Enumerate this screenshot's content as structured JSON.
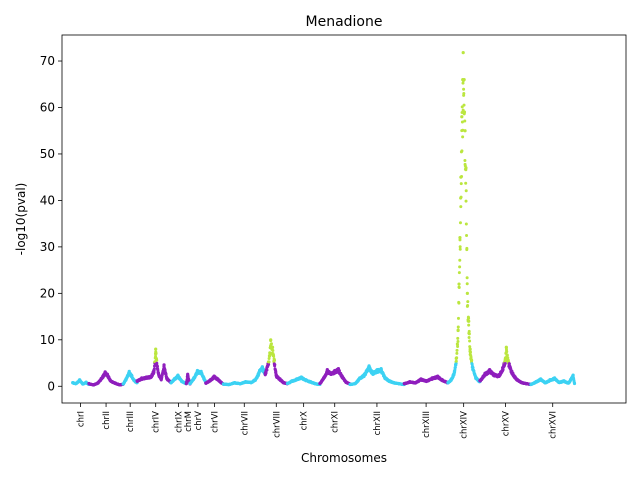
{
  "chart_data": {
    "type": "scatter",
    "title": "Menadione",
    "xlabel": "Chromosomes",
    "ylabel": "-log10(pval)",
    "ylim": [
      -3.6,
      75.6
    ],
    "yticks": [
      0,
      10,
      20,
      30,
      40,
      50,
      60,
      70
    ],
    "xlim": [
      0,
      12.16
    ],
    "grid": false,
    "colors": {
      "odd": "#3dd2f3",
      "even": "#8f1fbd",
      "significant": "#bbe63f"
    },
    "significance_threshold": 5,
    "chromosomes": [
      {
        "name": "chrI",
        "start": 0.23,
        "end": 0.58,
        "tick": 0.4
      },
      {
        "name": "chrII",
        "start": 0.58,
        "end": 1.32,
        "tick": 0.95
      },
      {
        "name": "chrIII",
        "start": 1.32,
        "end": 1.62,
        "tick": 1.47
      },
      {
        "name": "chrIV",
        "start": 1.62,
        "end": 2.35,
        "tick": 2.02
      },
      {
        "name": "chrIX",
        "start": 2.35,
        "end": 2.68,
        "tick": 2.51
      },
      {
        "name": "chrM",
        "start": 2.68,
        "end": 2.76,
        "tick": 2.72
      },
      {
        "name": "chrV",
        "start": 2.76,
        "end": 3.1,
        "tick": 2.93
      },
      {
        "name": "chrVI",
        "start": 3.1,
        "end": 3.48,
        "tick": 3.29
      },
      {
        "name": "chrVII",
        "start": 3.48,
        "end": 4.38,
        "tick": 3.93
      },
      {
        "name": "chrVIII",
        "start": 4.38,
        "end": 4.86,
        "tick": 4.62
      },
      {
        "name": "chrX",
        "start": 4.86,
        "end": 5.56,
        "tick": 5.21
      },
      {
        "name": "chrXI",
        "start": 5.56,
        "end": 6.21,
        "tick": 5.88
      },
      {
        "name": "chrXII",
        "start": 6.21,
        "end": 7.38,
        "tick": 6.79
      },
      {
        "name": "chrXIII",
        "start": 7.38,
        "end": 8.32,
        "tick": 7.85
      },
      {
        "name": "chrXIV",
        "start": 8.32,
        "end": 9.01,
        "tick": 8.66
      },
      {
        "name": "chrXV",
        "start": 9.01,
        "end": 10.11,
        "tick": 9.56
      },
      {
        "name": "chrXVI",
        "start": 10.11,
        "end": 11.05,
        "tick": 10.58
      }
    ],
    "series": [
      {
        "chromosome": "chrI",
        "points": [
          [
            0.23,
            0.8
          ],
          [
            0.3,
            0.6
          ],
          [
            0.38,
            1.4
          ],
          [
            0.45,
            0.5
          ],
          [
            0.52,
            0.9
          ],
          [
            0.58,
            0.4
          ]
        ]
      },
      {
        "chromosome": "chrII",
        "points": [
          [
            0.58,
            0.6
          ],
          [
            0.68,
            0.3
          ],
          [
            0.78,
            0.8
          ],
          [
            0.88,
            2.2
          ],
          [
            0.93,
            3.1
          ],
          [
            0.98,
            2.6
          ],
          [
            1.05,
            1.2
          ],
          [
            1.15,
            0.7
          ],
          [
            1.25,
            0.3
          ],
          [
            1.32,
            0.5
          ]
        ]
      },
      {
        "chromosome": "chrIII",
        "points": [
          [
            1.32,
            0.5
          ],
          [
            1.38,
            1.6
          ],
          [
            1.45,
            3.2
          ],
          [
            1.5,
            2.4
          ],
          [
            1.56,
            1.3
          ],
          [
            1.62,
            0.8
          ]
        ]
      },
      {
        "chromosome": "chrIV",
        "points": [
          [
            1.62,
            1.2
          ],
          [
            1.72,
            1.8
          ],
          [
            1.82,
            2.0
          ],
          [
            1.92,
            2.2
          ],
          [
            1.98,
            3.4
          ],
          [
            2.0,
            5.2
          ],
          [
            2.02,
            8.0
          ],
          [
            2.04,
            5.6
          ],
          [
            2.08,
            2.8
          ],
          [
            2.14,
            1.6
          ],
          [
            2.2,
            4.6
          ],
          [
            2.26,
            1.8
          ],
          [
            2.35,
            0.9
          ]
        ]
      },
      {
        "chromosome": "chrIX",
        "points": [
          [
            2.35,
            0.8
          ],
          [
            2.42,
            1.6
          ],
          [
            2.5,
            2.4
          ],
          [
            2.58,
            1.2
          ],
          [
            2.68,
            0.6
          ]
        ]
      },
      {
        "chromosome": "chrM",
        "points": [
          [
            2.68,
            0.6
          ],
          [
            2.71,
            2.6
          ],
          [
            2.74,
            1.2
          ],
          [
            2.76,
            0.5
          ]
        ]
      },
      {
        "chromosome": "chrV",
        "points": [
          [
            2.76,
            0.6
          ],
          [
            2.84,
            1.8
          ],
          [
            2.92,
            3.4
          ],
          [
            3.0,
            3.2
          ],
          [
            3.06,
            1.8
          ],
          [
            3.1,
            1.0
          ]
        ]
      },
      {
        "chromosome": "chrVI",
        "points": [
          [
            3.1,
            0.7
          ],
          [
            3.2,
            1.4
          ],
          [
            3.28,
            2.2
          ],
          [
            3.36,
            1.6
          ],
          [
            3.44,
            0.8
          ],
          [
            3.48,
            0.5
          ]
        ]
      },
      {
        "chromosome": "chrVII",
        "points": [
          [
            3.48,
            0.5
          ],
          [
            3.6,
            0.4
          ],
          [
            3.72,
            0.8
          ],
          [
            3.84,
            0.6
          ],
          [
            3.96,
            1.0
          ],
          [
            4.08,
            0.9
          ],
          [
            4.18,
            1.6
          ],
          [
            4.26,
            3.4
          ],
          [
            4.32,
            4.2
          ],
          [
            4.38,
            3.0
          ]
        ]
      },
      {
        "chromosome": "chrVIII",
        "points": [
          [
            4.38,
            2.8
          ],
          [
            4.44,
            4.8
          ],
          [
            4.48,
            7.2
          ],
          [
            4.5,
            10.0
          ],
          [
            4.54,
            8.4
          ],
          [
            4.58,
            5.6
          ],
          [
            4.62,
            2.4
          ],
          [
            4.7,
            1.6
          ],
          [
            4.78,
            0.8
          ],
          [
            4.86,
            0.6
          ]
        ]
      },
      {
        "chromosome": "chrX",
        "points": [
          [
            4.86,
            0.6
          ],
          [
            4.96,
            1.2
          ],
          [
            5.06,
            1.6
          ],
          [
            5.16,
            2.0
          ],
          [
            5.26,
            1.4
          ],
          [
            5.36,
            1.0
          ],
          [
            5.46,
            0.6
          ],
          [
            5.56,
            0.4
          ]
        ]
      },
      {
        "chromosome": "chrXI",
        "points": [
          [
            5.56,
            0.6
          ],
          [
            5.64,
            1.8
          ],
          [
            5.72,
            3.6
          ],
          [
            5.8,
            2.8
          ],
          [
            5.88,
            3.4
          ],
          [
            5.96,
            3.8
          ],
          [
            6.04,
            2.2
          ],
          [
            6.12,
            1.0
          ],
          [
            6.21,
            0.5
          ]
        ]
      },
      {
        "chromosome": "chrXII",
        "points": [
          [
            6.21,
            0.4
          ],
          [
            6.32,
            0.6
          ],
          [
            6.42,
            1.8
          ],
          [
            6.52,
            2.6
          ],
          [
            6.62,
            4.4
          ],
          [
            6.7,
            3.0
          ],
          [
            6.8,
            3.6
          ],
          [
            6.88,
            3.8
          ],
          [
            6.96,
            2.0
          ],
          [
            7.06,
            1.2
          ],
          [
            7.16,
            0.8
          ],
          [
            7.26,
            0.6
          ],
          [
            7.38,
            0.4
          ]
        ]
      },
      {
        "chromosome": "chrXIII",
        "points": [
          [
            7.38,
            0.6
          ],
          [
            7.5,
            1.0
          ],
          [
            7.62,
            0.8
          ],
          [
            7.74,
            1.6
          ],
          [
            7.86,
            1.2
          ],
          [
            7.98,
            1.8
          ],
          [
            8.1,
            2.2
          ],
          [
            8.2,
            1.4
          ],
          [
            8.32,
            0.8
          ]
        ]
      },
      {
        "chromosome": "chrXIV",
        "points": [
          [
            8.32,
            0.8
          ],
          [
            8.4,
            1.6
          ],
          [
            8.46,
            3.2
          ],
          [
            8.5,
            6.0
          ],
          [
            8.54,
            12.0
          ],
          [
            8.56,
            22.0
          ],
          [
            8.58,
            32.0
          ],
          [
            8.6,
            45.0
          ],
          [
            8.62,
            58.0
          ],
          [
            8.64,
            66.0
          ],
          [
            8.65,
            71.8
          ],
          [
            8.67,
            66.0
          ],
          [
            8.69,
            55.0
          ],
          [
            8.71,
            47.0
          ],
          [
            8.74,
            20.0
          ],
          [
            8.77,
            14.0
          ],
          [
            8.8,
            8.0
          ],
          [
            8.86,
            4.0
          ],
          [
            8.92,
            2.0
          ],
          [
            9.01,
            1.0
          ]
        ]
      },
      {
        "chromosome": "chrXV",
        "points": [
          [
            9.01,
            1.2
          ],
          [
            9.12,
            2.8
          ],
          [
            9.22,
            3.6
          ],
          [
            9.32,
            2.6
          ],
          [
            9.42,
            2.4
          ],
          [
            9.5,
            4.0
          ],
          [
            9.56,
            6.0
          ],
          [
            9.58,
            8.4
          ],
          [
            9.62,
            5.6
          ],
          [
            9.7,
            3.2
          ],
          [
            9.8,
            1.6
          ],
          [
            9.92,
            0.8
          ],
          [
            10.02,
            0.6
          ],
          [
            10.11,
            0.4
          ]
        ]
      },
      {
        "chromosome": "chrXVI",
        "points": [
          [
            10.11,
            0.4
          ],
          [
            10.22,
            1.0
          ],
          [
            10.32,
            1.6
          ],
          [
            10.42,
            0.8
          ],
          [
            10.52,
            1.4
          ],
          [
            10.62,
            1.8
          ],
          [
            10.72,
            0.9
          ],
          [
            10.82,
            1.2
          ],
          [
            10.92,
            0.7
          ],
          [
            11.02,
            2.4
          ],
          [
            11.05,
            0.6
          ]
        ]
      }
    ]
  }
}
